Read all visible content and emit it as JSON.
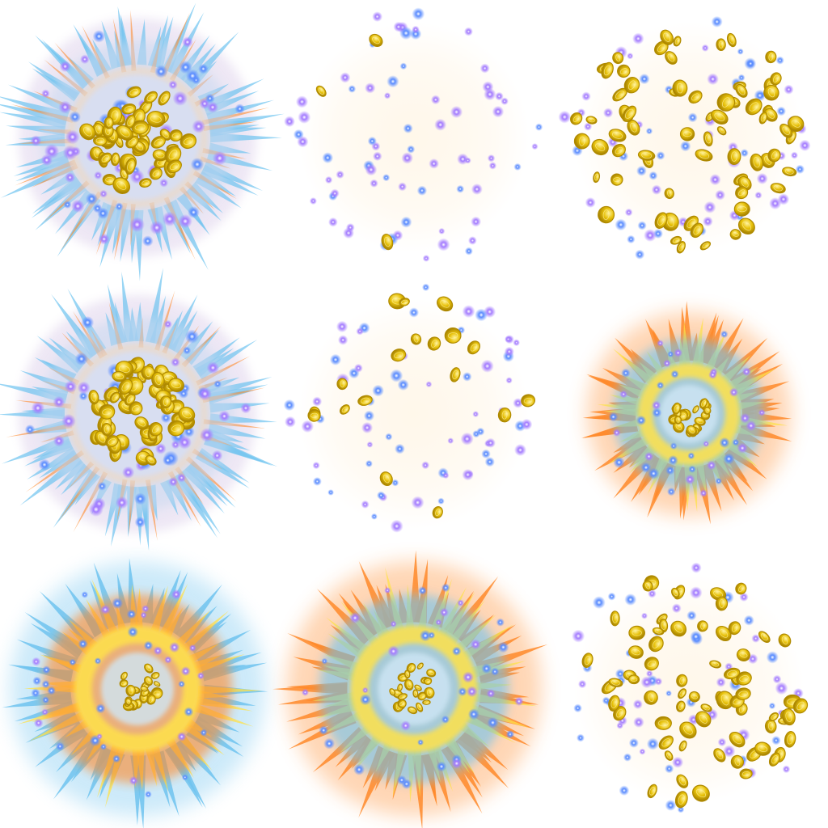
{
  "sheet": {
    "grid": "3x3",
    "frames": [
      {
        "kind": "burst-core",
        "palette": "blue-violet",
        "coins": "dense-center"
      },
      {
        "kind": "scatter",
        "palette": "violet-sparks",
        "coins": "few"
      },
      {
        "kind": "scatter",
        "palette": "violet-sparks",
        "coins": "many"
      },
      {
        "kind": "burst-core",
        "palette": "blue-violet",
        "coins": "dense-center"
      },
      {
        "kind": "scatter",
        "palette": "violet-sparks",
        "coins": "some"
      },
      {
        "kind": "burst-fire",
        "palette": "orange-yellow",
        "coins": "small-center"
      },
      {
        "kind": "burst-fire",
        "palette": "blue-orange",
        "coins": "small-center"
      },
      {
        "kind": "burst-fire",
        "palette": "orange-blue",
        "coins": "small-center"
      },
      {
        "kind": "scatter",
        "palette": "violet-sparks",
        "coins": "many"
      }
    ],
    "colors": {
      "coin": "#e8c20a",
      "coin_dark": "#b08a00",
      "spark_violet": "#8a5cf0",
      "spark_blue": "#4f7df0",
      "glow_blue": "#6ec3ef",
      "fire_orange": "#ff8a2a",
      "fire_yellow": "#ffe24a",
      "haze": "#d9cbe8"
    }
  }
}
